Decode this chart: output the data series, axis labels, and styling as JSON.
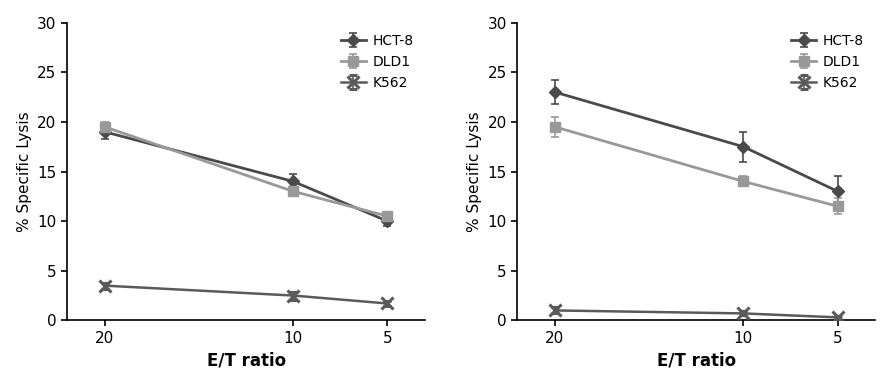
{
  "x": [
    20,
    10,
    5
  ],
  "left": {
    "HCT8": {
      "y": [
        19.0,
        14.0,
        10.0
      ],
      "yerr": [
        0.7,
        0.7,
        0.5
      ]
    },
    "DLD1": {
      "y": [
        19.5,
        13.0,
        10.5
      ],
      "yerr": [
        0.5,
        0.5,
        0.4
      ]
    },
    "K562": {
      "y": [
        3.5,
        2.5,
        1.7
      ],
      "yerr": [
        0.3,
        0.4,
        0.3
      ]
    }
  },
  "right": {
    "HCT8": {
      "y": [
        23.0,
        17.5,
        13.0
      ],
      "yerr": [
        1.2,
        1.5,
        1.5
      ]
    },
    "DLD1": {
      "y": [
        19.5,
        14.0,
        11.5
      ],
      "yerr": [
        1.0,
        0.5,
        0.8
      ]
    },
    "K562": {
      "y": [
        1.0,
        0.7,
        0.3
      ],
      "yerr": [
        0.3,
        0.2,
        0.15
      ]
    }
  },
  "hct8_color": "#4a4a4a",
  "dld1_color": "#999999",
  "k562_color": "#5a5a5a",
  "ylim": [
    0,
    30
  ],
  "yticks": [
    0,
    5,
    10,
    15,
    20,
    25,
    30
  ],
  "xticks": [
    20,
    10,
    5
  ],
  "xlim": [
    22,
    3
  ],
  "xlabel": "E/T ratio",
  "ylabel": "% Specific Lysis",
  "legend_labels": [
    "HCT-8",
    "DLD1",
    "K562"
  ]
}
